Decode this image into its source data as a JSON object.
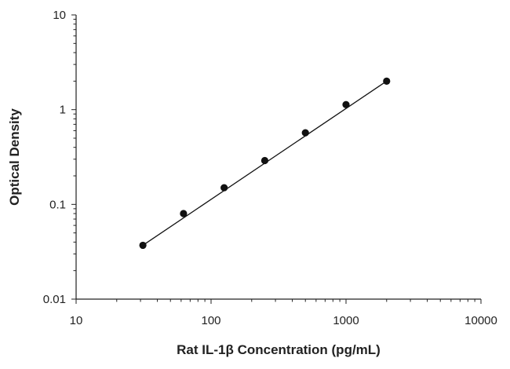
{
  "chart_data": {
    "type": "scatter",
    "title": "",
    "xlabel": "Rat IL-1β Concentration (pg/mL)",
    "ylabel": "Optical Density",
    "xscale": "log",
    "yscale": "log",
    "xlim": [
      10,
      10000
    ],
    "ylim": [
      0.01,
      10
    ],
    "x_tick_labels": [
      "10",
      "100",
      "1000",
      "10000"
    ],
    "y_tick_labels": [
      "0.01",
      "0.1",
      "1",
      "10"
    ],
    "x_tick_values": [
      10,
      100,
      1000,
      10000
    ],
    "y_tick_values": [
      0.01,
      0.1,
      1,
      10
    ],
    "grid": false,
    "legend": "none",
    "series": [
      {
        "x": [
          31.25,
          62.5,
          125,
          250,
          500,
          1000,
          2000
        ],
        "y": [
          0.037,
          0.08,
          0.15,
          0.29,
          0.57,
          1.13,
          2.0
        ]
      }
    ],
    "fit_line": {
      "x": [
        31.25,
        2000
      ],
      "y": [
        0.037,
        2.0
      ]
    },
    "colors": {
      "marker": "#111111",
      "line": "#111111",
      "axis": "#222222"
    }
  }
}
